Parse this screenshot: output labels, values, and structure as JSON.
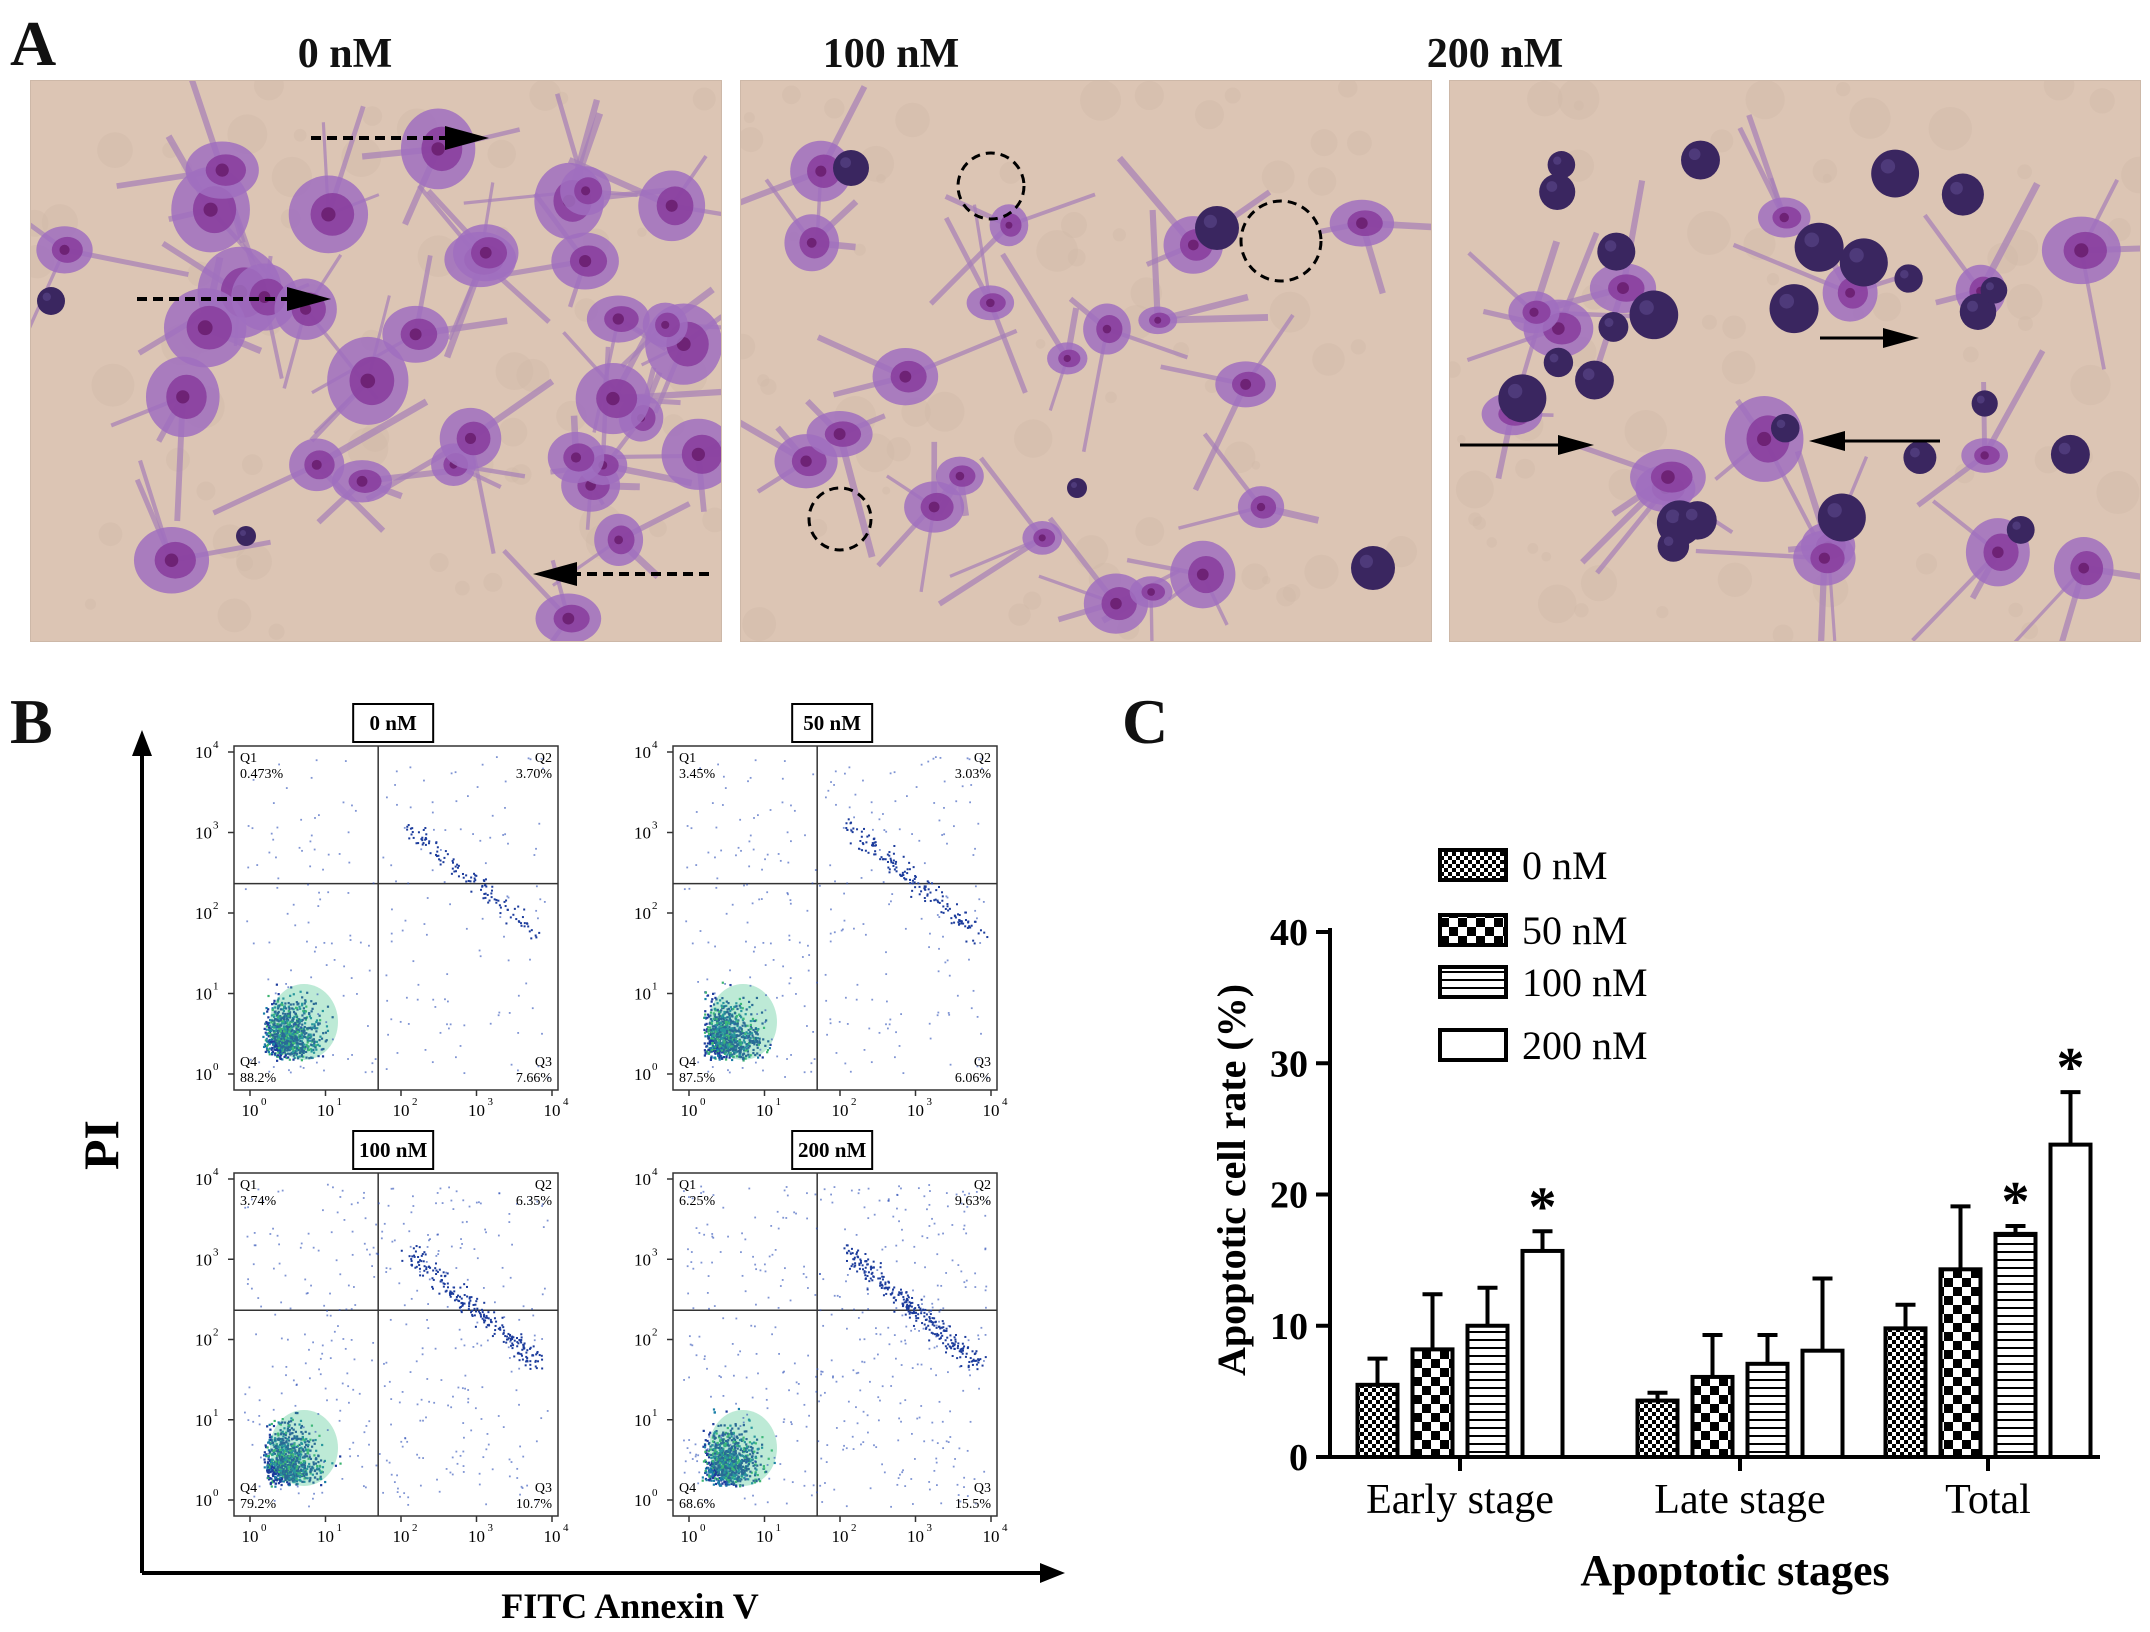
{
  "panels": {
    "a": "A",
    "b": "B",
    "c": "C"
  },
  "micrographs": [
    {
      "title": "0 nM"
    },
    {
      "title": "100 nM"
    },
    {
      "title": "200 nM"
    }
  ],
  "flow": {
    "xlabel": "FITC Annexin V",
    "ylabel": "PI",
    "tick_labels": [
      "10",
      "10",
      "10",
      "10",
      "10"
    ],
    "tick_exponents": [
      "0",
      "1",
      "2",
      "3",
      "4"
    ],
    "plots": [
      {
        "title": "0 nM",
        "q1_label": "Q1",
        "q1": "0.473%",
        "q2_label": "Q2",
        "q2": "3.70%",
        "q3_label": "Q3",
        "q3": "7.66%",
        "q4_label": "Q4",
        "q4": "88.2%"
      },
      {
        "title": "50 nM",
        "q1_label": "Q1",
        "q1": "3.45%",
        "q2_label": "Q2",
        "q2": "3.03%",
        "q3_label": "Q3",
        "q3": "6.06%",
        "q4_label": "Q4",
        "q4": "87.5%"
      },
      {
        "title": "100 nM",
        "q1_label": "Q1",
        "q1": "3.74%",
        "q2_label": "Q2",
        "q2": "6.35%",
        "q3_label": "Q3",
        "q3": "10.7%",
        "q4_label": "Q4",
        "q4": "79.2%"
      },
      {
        "title": "200 nM",
        "q1_label": "Q1",
        "q1": "6.25%",
        "q2_label": "Q2",
        "q2": "9.63%",
        "q3_label": "Q3",
        "q3": "15.5%",
        "q4_label": "Q4",
        "q4": "68.6%"
      }
    ]
  },
  "chart_data": {
    "type": "bar",
    "categories": [
      "Early stage",
      "Late stage",
      "Total"
    ],
    "series": [
      {
        "name": "0 nM",
        "values": [
          5.5,
          4.3,
          9.8
        ],
        "errors": [
          2.0,
          0.6,
          1.8
        ]
      },
      {
        "name": "50 nM",
        "values": [
          8.2,
          6.1,
          14.3
        ],
        "errors": [
          4.2,
          3.2,
          4.8
        ]
      },
      {
        "name": "100 nM",
        "values": [
          10.0,
          7.1,
          17.0
        ],
        "errors": [
          2.9,
          2.2,
          0.6
        ]
      },
      {
        "name": "200 nM",
        "values": [
          15.7,
          8.1,
          23.8
        ],
        "errors": [
          1.5,
          5.5,
          4.0
        ]
      }
    ],
    "significance": [
      [
        false,
        false,
        false
      ],
      [
        false,
        false,
        false
      ],
      [
        false,
        false,
        true
      ],
      [
        true,
        false,
        true
      ]
    ],
    "significance_marker": "*",
    "xlabel": "Apoptotic stages",
    "ylabel": "Apoptotic cell rate (%)",
    "ylim": [
      0,
      40
    ],
    "yticks": [
      "0",
      "10",
      "20",
      "30",
      "40"
    ],
    "legend_position": "top",
    "colors": {
      "bar_stroke": "#000000",
      "fill": "#ffffff"
    }
  }
}
